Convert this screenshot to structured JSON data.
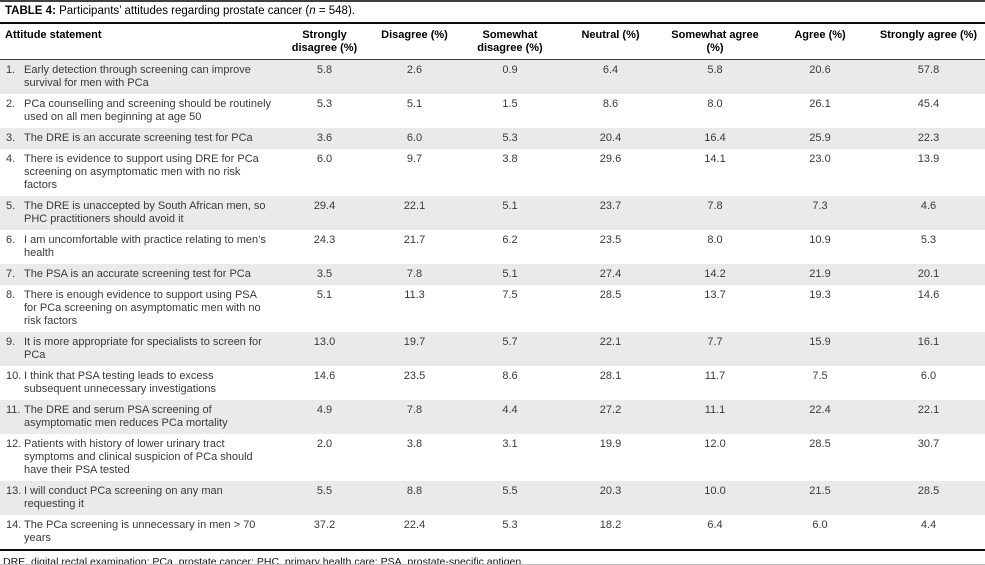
{
  "title": {
    "label": "TABLE 4:",
    "text": " Participants’ attitudes regarding prostate cancer (",
    "n_var": "n",
    "suffix": " = 548)."
  },
  "table": {
    "headers": [
      "Attitude statement",
      "Strongly disagree (%)",
      "Disagree (%)",
      "Somewhat disagree (%)",
      "Neutral (%)",
      "Somewhat agree (%)",
      "Agree (%)",
      "Strongly agree (%)"
    ],
    "rows": [
      {
        "num": "1.",
        "statement": "Early detection through screening can improve survival for men with PCa",
        "values": [
          "5.8",
          "2.6",
          "0.9",
          "6.4",
          "5.8",
          "20.6",
          "57.8"
        ]
      },
      {
        "num": "2.",
        "statement": "PCa counselling and screening should be routinely used on all men beginning at age 50",
        "values": [
          "5.3",
          "5.1",
          "1.5",
          "8.6",
          "8.0",
          "26.1",
          "45.4"
        ]
      },
      {
        "num": "3.",
        "statement": "The DRE is an accurate screening test for PCa",
        "values": [
          "3.6",
          "6.0",
          "5.3",
          "20.4",
          "16.4",
          "25.9",
          "22.3"
        ]
      },
      {
        "num": "4.",
        "statement": "There is evidence to support using DRE for PCa screening on asymptomatic men with no risk factors",
        "values": [
          "6.0",
          "9.7",
          "3.8",
          "29.6",
          "14.1",
          "23.0",
          "13.9"
        ]
      },
      {
        "num": "5.",
        "statement": "The DRE is unaccepted by South African men, so PHC practitioners should avoid it",
        "values": [
          "29.4",
          "22.1",
          "5.1",
          "23.7",
          "7.8",
          "7.3",
          "4.6"
        ]
      },
      {
        "num": "6.",
        "statement": "I am uncomfortable with practice relating to men’s health",
        "values": [
          "24.3",
          "21.7",
          "6.2",
          "23.5",
          "8.0",
          "10.9",
          "5.3"
        ]
      },
      {
        "num": "7.",
        "statement": "The PSA is an accurate screening test for PCa",
        "values": [
          "3.5",
          "7.8",
          "5.1",
          "27.4",
          "14.2",
          "21.9",
          "20.1"
        ]
      },
      {
        "num": "8.",
        "statement": "There is enough evidence to support using PSA for PCa screening on asymptomatic men with no risk factors",
        "values": [
          "5.1",
          "11.3",
          "7.5",
          "28.5",
          "13.7",
          "19.3",
          "14.6"
        ]
      },
      {
        "num": "9.",
        "statement": "It is more appropriate for specialists to screen for PCa",
        "values": [
          "13.0",
          "19.7",
          "5.7",
          "22.1",
          "7.7",
          "15.9",
          "16.1"
        ]
      },
      {
        "num": "10.",
        "statement": "I think that PSA testing leads to excess subsequent unnecessary investigations",
        "values": [
          "14.6",
          "23.5",
          "8.6",
          "28.1",
          "11.7",
          "7.5",
          "6.0"
        ]
      },
      {
        "num": "11.",
        "statement": "The DRE and serum PSA screening of asymptomatic men reduces PCa mortality",
        "values": [
          "4.9",
          "7.8",
          "4.4",
          "27.2",
          "11.1",
          "22.4",
          "22.1"
        ]
      },
      {
        "num": "12.",
        "statement": "Patients with history of lower urinary tract symptoms and clinical suspicion of PCa should have their PSA tested",
        "values": [
          "2.0",
          "3.8",
          "3.1",
          "19.9",
          "12.0",
          "28.5",
          "30.7"
        ]
      },
      {
        "num": "13.",
        "statement": "I will conduct PCa screening on any man requesting it",
        "values": [
          "5.5",
          "8.8",
          "5.5",
          "20.3",
          "10.0",
          "21.5",
          "28.5"
        ]
      },
      {
        "num": "14.",
        "statement": "The PCa screening is unnecessary in men > 70 years",
        "values": [
          "37.2",
          "22.4",
          "5.3",
          "18.2",
          "6.4",
          "6.0",
          "4.4"
        ]
      }
    ]
  },
  "footnote": "DRE, digital rectal examination; PCa, prostate cancer; PHC, primary health care; PSA, prostate-specific antigen."
}
